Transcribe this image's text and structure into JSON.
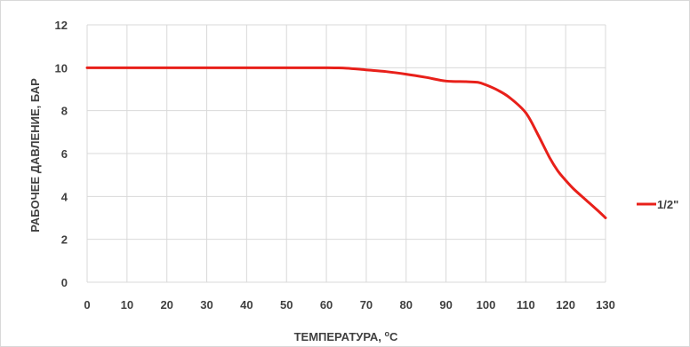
{
  "chart_data": {
    "type": "line",
    "title": "",
    "xlabel": "ТЕМПЕРАТУРА, ",
    "xlabel_sup": "o",
    "xlabel_unit": "C",
    "ylabel": "РАБОЧЕЕ ДАВЛЕНИЕ, БАР",
    "xlim": [
      0,
      130
    ],
    "ylim": [
      0,
      12
    ],
    "x_ticks": [
      0,
      10,
      20,
      30,
      40,
      50,
      60,
      70,
      80,
      90,
      100,
      110,
      120,
      130
    ],
    "y_ticks": [
      0,
      2,
      4,
      6,
      8,
      10,
      12
    ],
    "grid": true,
    "legend_position": "right",
    "series": [
      {
        "name": "1/2\"",
        "color": "#e8201a",
        "x": [
          0,
          10,
          20,
          30,
          40,
          50,
          60,
          65,
          70,
          75,
          80,
          85,
          90,
          95,
          98,
          100,
          103,
          106,
          110,
          113,
          116,
          118,
          120,
          122,
          125,
          128,
          130
        ],
        "y": [
          10,
          10,
          10,
          10,
          10,
          10,
          10,
          9.98,
          9.9,
          9.82,
          9.7,
          9.55,
          9.38,
          9.35,
          9.32,
          9.2,
          8.95,
          8.6,
          7.9,
          6.9,
          5.8,
          5.2,
          4.75,
          4.35,
          3.85,
          3.35,
          3.0
        ]
      }
    ]
  }
}
